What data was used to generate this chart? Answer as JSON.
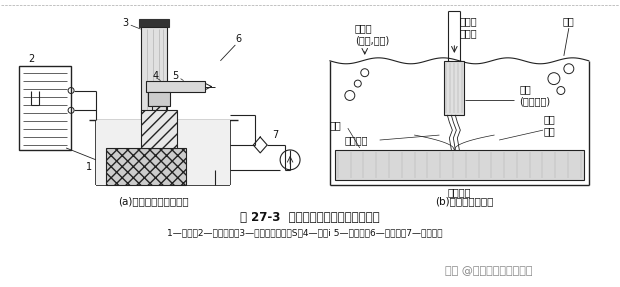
{
  "bg_color": "#ffffff",
  "title_line": "图 27-3  电火花成型加工原理的示意图",
  "caption_a": "(a)电火花成型加工原理",
  "caption_b": "(b)放电状况微观图",
  "legend_line": "1—工件；2—脉冲电源；3—自动进给调节装S；4—工具i 5—工作液；6—过滤器》7—工作液泵",
  "watermark": "头条 @青华模具学院小欢欢",
  "lbl_jyy": "绝缘液\n(煤油,柴油)",
  "lbl_zzs": "主轴头\n送给量",
  "lbl_qp": "气泡",
  "lbl_dj": "电极\n(般为正极)",
  "lbl_fdy": "放电液体",
  "lbl_gdjx": "放电\n间隙",
  "lbl_sw": "工件",
  "lbl_fwjk": "冲污进孔",
  "font_size_title": 8.5,
  "font_size_labels": 7.0,
  "font_size_caption": 7.5,
  "font_size_legend": 6.5,
  "font_size_watermark": 8,
  "line_color": "#222222",
  "fill_hatch": "#888888",
  "watermark_color": "#888888"
}
